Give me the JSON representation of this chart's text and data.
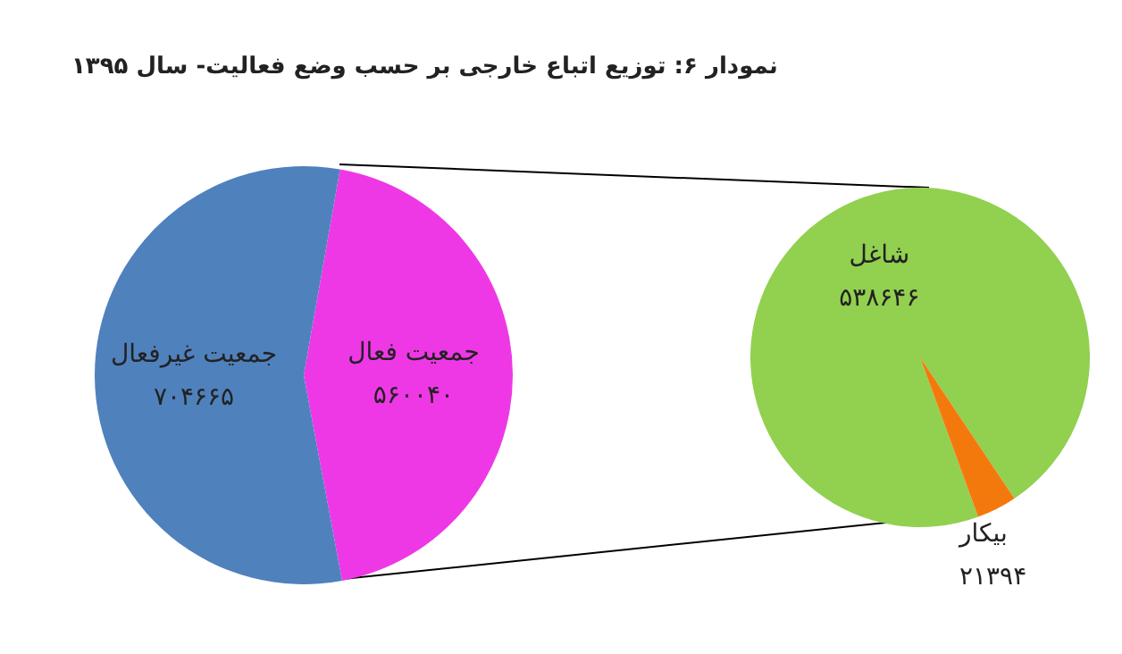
{
  "chart_data": [
    {
      "type": "pie",
      "title": "نمودار ۶: توزیع اتباع خارجی بر حسب وضع فعالیت- سال ۱۳۹۵",
      "categories": [
        "جمعیت فعال",
        "جمعیت غیرفعال"
      ],
      "values": [
        560040,
        704665
      ],
      "colors": [
        "#ee38e6",
        "#4f81bd"
      ],
      "value_labels": [
        "۵۶۰۰۴۰",
        "۷۰۴۶۶۵"
      ]
    },
    {
      "type": "pie",
      "categories": [
        "شاغل",
        "بیکار"
      ],
      "values": [
        538646,
        21394
      ],
      "colors": [
        "#92d050",
        "#f4790d"
      ],
      "value_labels": [
        "۵۳۸۶۴۶",
        "۲۱۳۹۴"
      ]
    }
  ]
}
